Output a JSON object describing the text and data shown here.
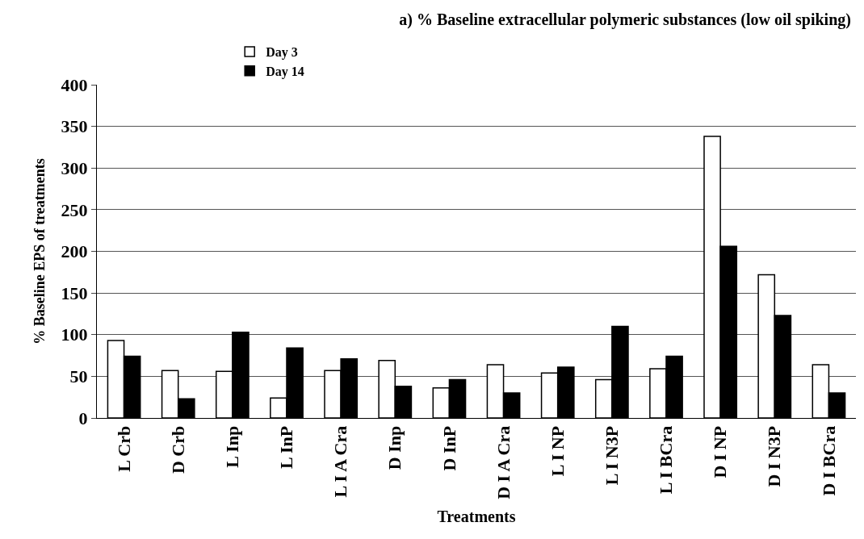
{
  "chart_data": {
    "type": "bar",
    "title": "a) % Baseline extracellular polymeric substances (low oil spiking)",
    "xlabel": "Treatments",
    "ylabel": "% Baseline EPS of treatments",
    "categories": [
      "L Crb",
      "D Crb",
      "L Inp",
      "L InP",
      "L I A Cra",
      "D Inp",
      "D InP",
      "D I A Cra",
      "L I NP",
      "L I N3P",
      "L I BCra",
      "D I NP",
      "D I N3P",
      "D I BCra"
    ],
    "series": [
      {
        "name": "Day 3",
        "color": "#ffffff",
        "values": [
          93,
          57,
          56,
          24,
          57,
          69,
          36,
          64,
          54,
          46,
          59,
          338,
          172,
          64
        ]
      },
      {
        "name": "Day 14",
        "color": "#000000",
        "values": [
          74,
          23,
          103,
          84,
          71,
          38,
          46,
          30,
          61,
          110,
          74,
          206,
          123,
          30
        ]
      }
    ],
    "ylim": [
      0,
      400
    ],
    "yticks": [
      0,
      50,
      100,
      150,
      200,
      250,
      300,
      350,
      400
    ],
    "grid": "y",
    "legend": "top left"
  }
}
